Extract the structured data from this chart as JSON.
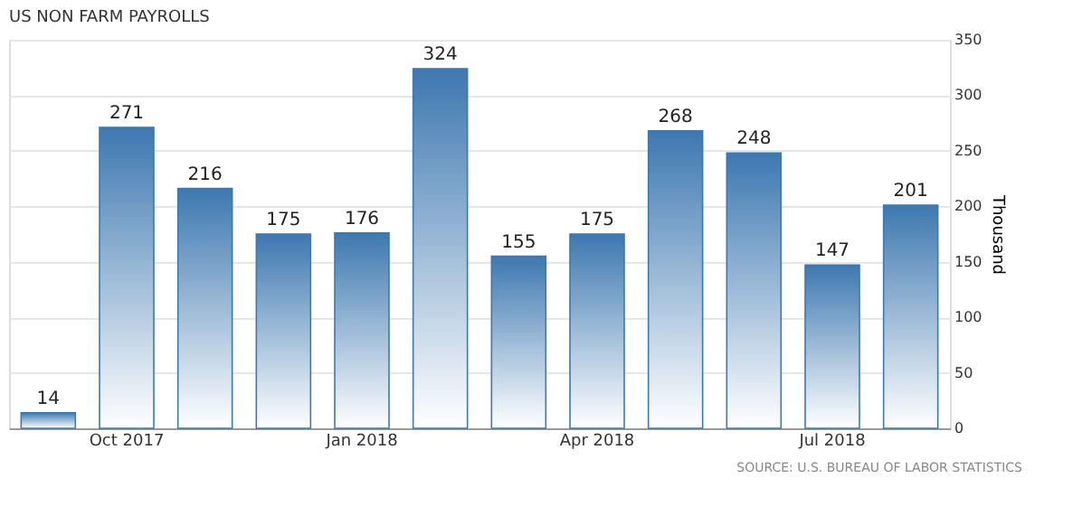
{
  "chart_data": {
    "type": "bar",
    "title": "US NON FARM PAYROLLS",
    "ylabel": "Thousand",
    "categories": [
      null,
      "Oct 2017",
      null,
      null,
      "Jan 2018",
      null,
      null,
      "Apr 2018",
      null,
      null,
      "Jul 2018",
      null
    ],
    "values": [
      14,
      271,
      216,
      175,
      176,
      324,
      155,
      175,
      268,
      248,
      147,
      201
    ],
    "color": "#3d78b0",
    "ylim": [
      0,
      350
    ],
    "yticks": [
      0,
      50,
      100,
      150,
      200,
      250,
      300,
      350
    ],
    "grid": "y",
    "data_labels": true,
    "annotations": [
      "SOURCE: U.S. BUREAU OF LABOR STATISTICS"
    ]
  }
}
